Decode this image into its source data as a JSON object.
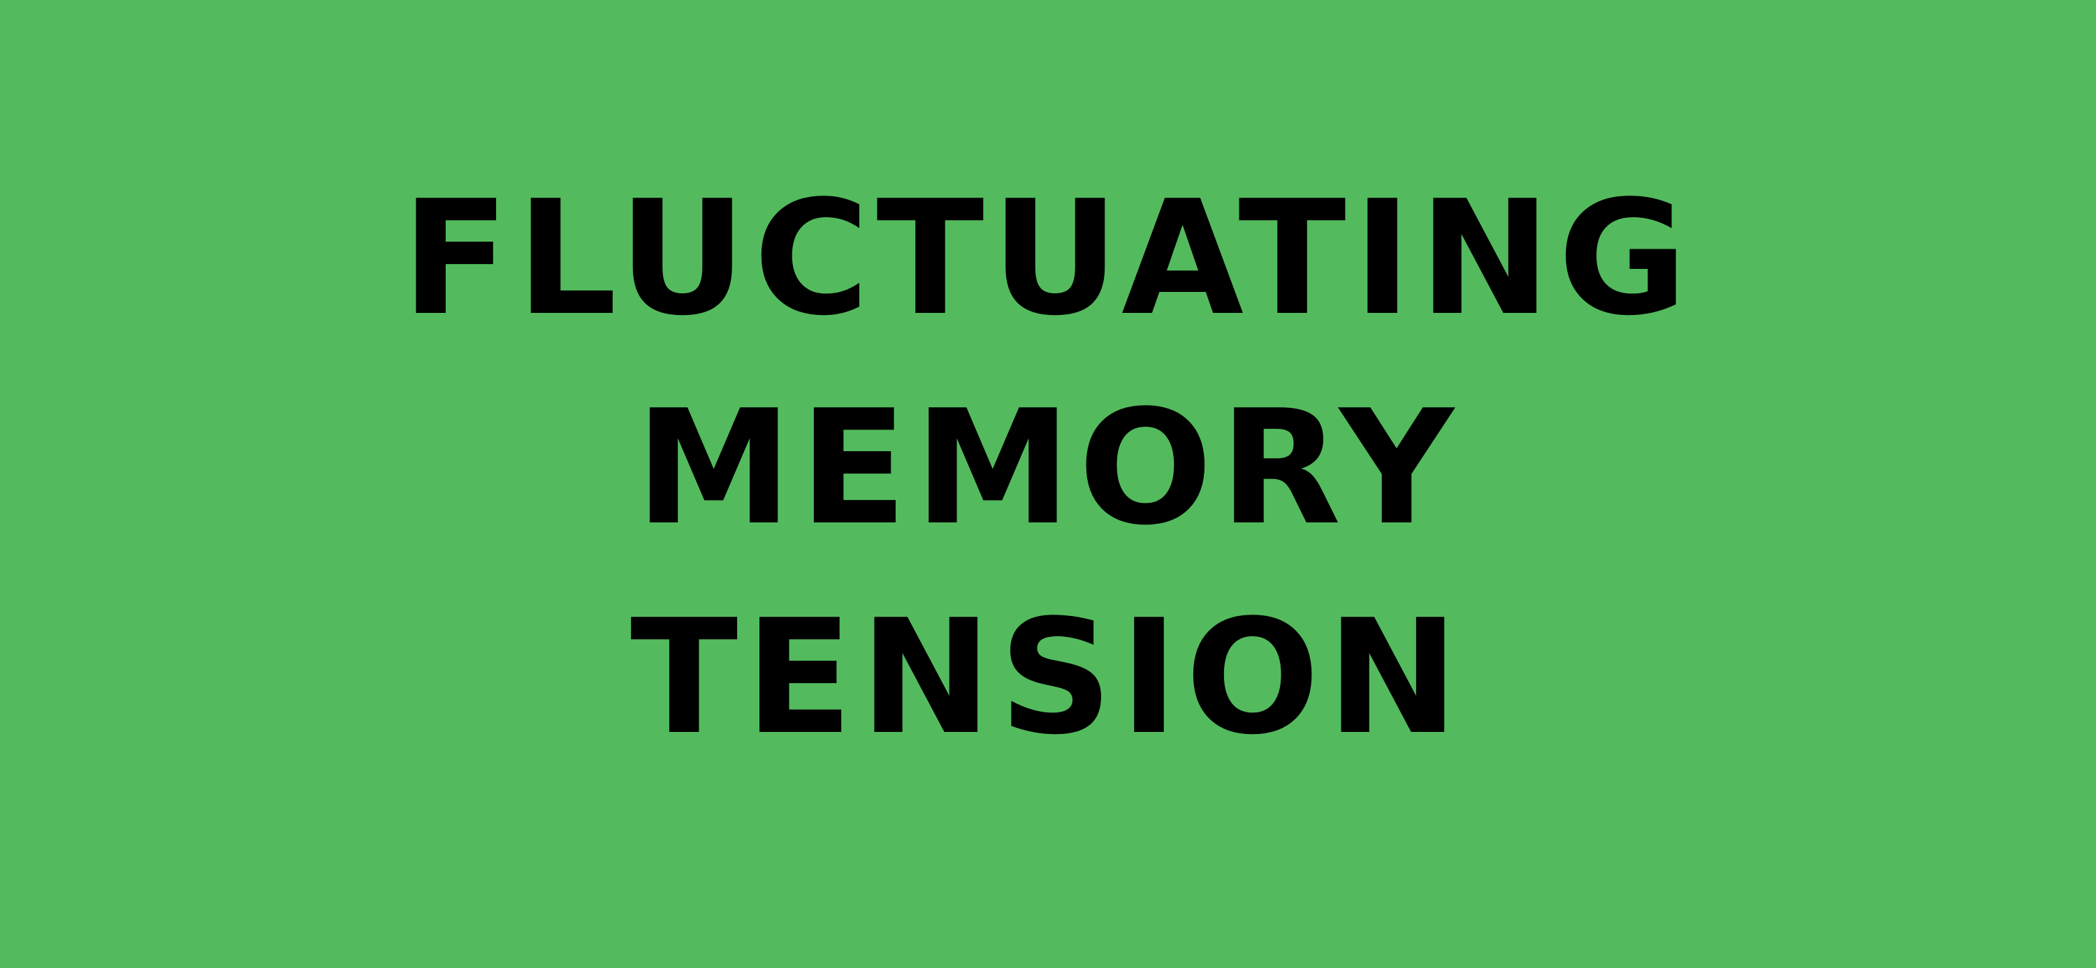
{
  "title_lines": [
    "FLUCTUATING",
    "MEMORY",
    "TENSION"
  ],
  "colors": {
    "background": "#53bb5e",
    "text": "#000000"
  }
}
